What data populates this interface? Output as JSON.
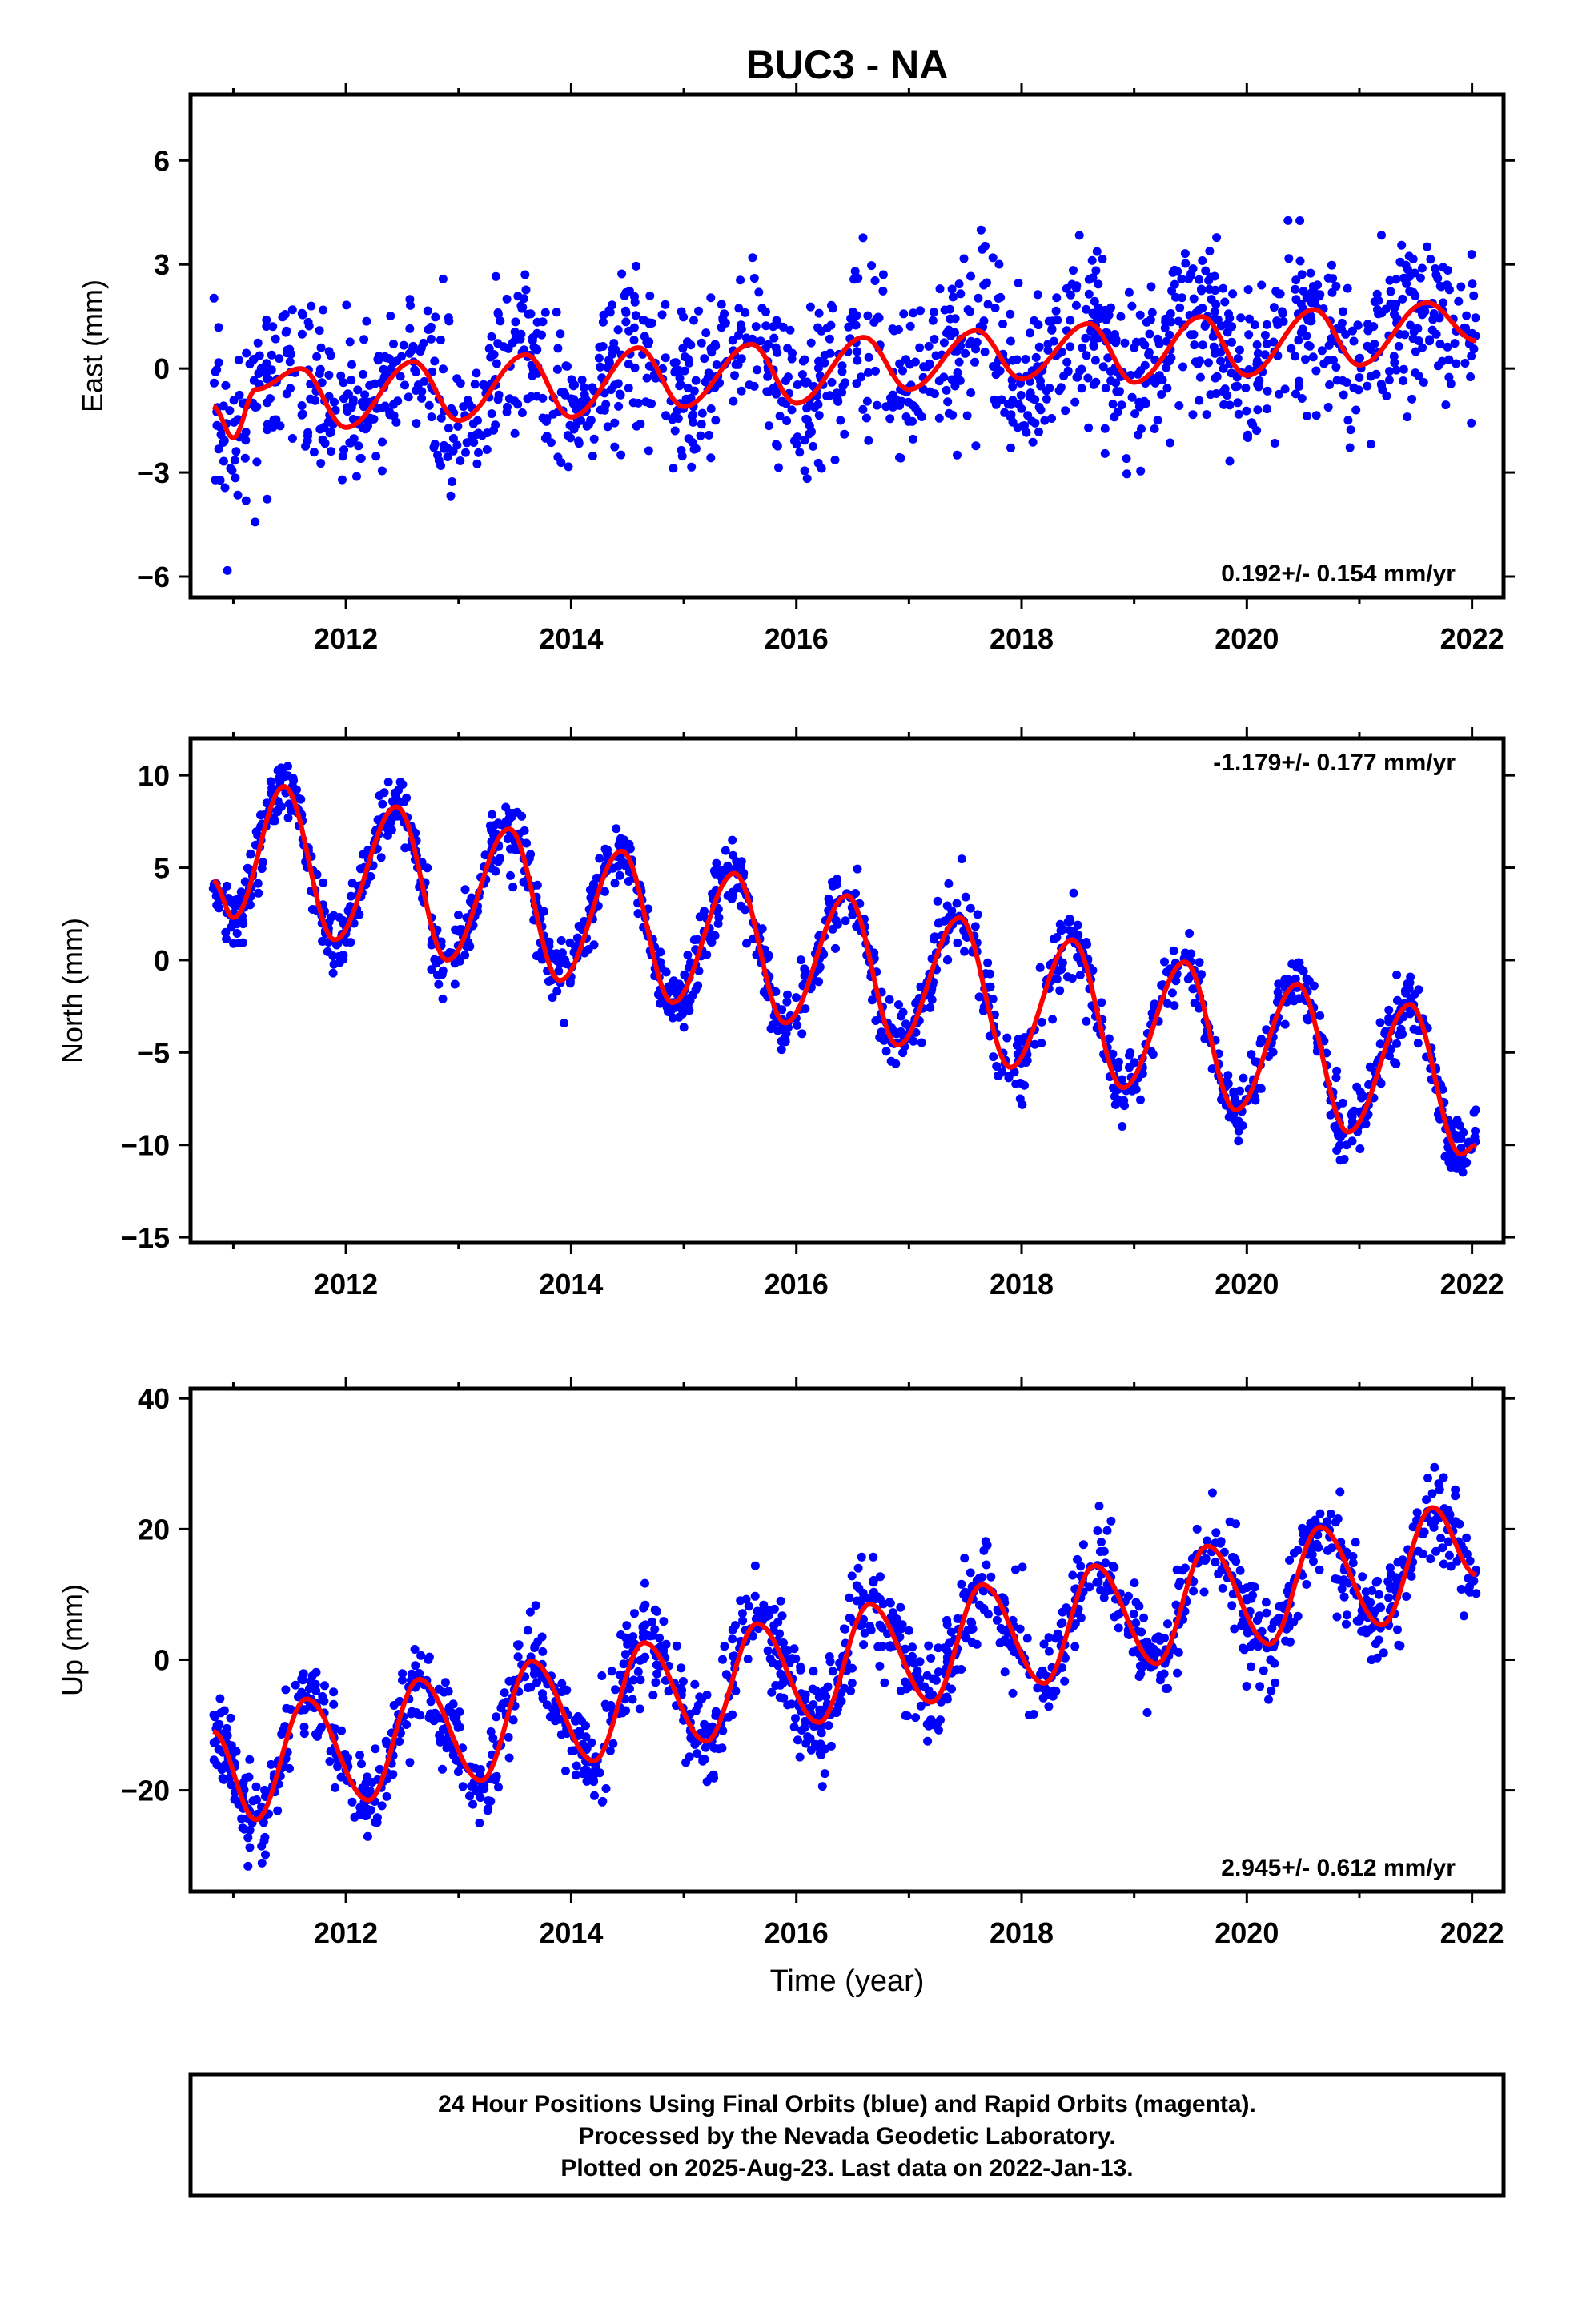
{
  "title": "BUC3 - NA",
  "colors": {
    "points": "#0000ff",
    "fit": "#ff0000",
    "frame": "#000000"
  },
  "xaxis": {
    "label": "Time (year)",
    "range": [
      2010.62,
      2022.28
    ],
    "ticks": [
      2012,
      2014,
      2016,
      2018,
      2020,
      2022
    ]
  },
  "caption": [
    "24 Hour Positions Using Final Orbits (blue) and Rapid Orbits (magenta).",
    "Processed by the Nevada Geodetic Laboratory.",
    "Plotted on 2025-Aug-23. Last data on 2022-Jan-13."
  ],
  "chart_data": [
    {
      "type": "scatter",
      "ylabel": "East (mm)",
      "ylim": [
        -6.6,
        7.9
      ],
      "yticks": [
        -6,
        -3,
        0,
        3,
        6
      ],
      "rate_label": "0.192+/- 0.154 mm/yr",
      "rate_position": "bottom-right",
      "time_range": [
        2010.82,
        2022.04
      ],
      "scatter_sd": 1.15,
      "series": [
        {
          "values_description": "daily positions",
          "fit": {
            "x": [
              2010.82,
              2011.0,
              2011.2,
              2011.6,
              2012.0,
              2012.6,
              2013.0,
              2013.6,
              2014.0,
              2014.6,
              2015.0,
              2015.6,
              2016.0,
              2016.6,
              2017.0,
              2017.6,
              2018.0,
              2018.6,
              2019.0,
              2019.6,
              2020.0,
              2020.6,
              2021.0,
              2021.6,
              2022.04
            ],
            "y": [
              -1.1,
              -2.0,
              -0.6,
              0.0,
              -1.7,
              0.2,
              -1.5,
              0.4,
              -1.4,
              0.6,
              -1.1,
              0.7,
              -1.0,
              0.9,
              -0.6,
              1.1,
              -0.3,
              1.3,
              -0.4,
              1.5,
              -0.2,
              1.7,
              0.1,
              1.9,
              0.8
            ]
          }
        }
      ]
    },
    {
      "type": "scatter",
      "ylabel": "North (mm)",
      "ylim": [
        -15.3,
        12.0
      ],
      "yticks": [
        -15,
        -10,
        -5,
        0,
        5,
        10
      ],
      "rate_label": "-1.179+/- 0.177 mm/yr",
      "rate_position": "top-right",
      "time_range": [
        2010.82,
        2022.04
      ],
      "scatter_sd": 0.9,
      "series": [
        {
          "values_description": "daily positions",
          "fit": {
            "x": [
              2010.82,
              2011.0,
              2011.45,
              2011.9,
              2012.45,
              2012.9,
              2013.45,
              2013.9,
              2014.45,
              2014.9,
              2015.45,
              2015.9,
              2016.45,
              2016.9,
              2017.45,
              2017.9,
              2018.45,
              2018.9,
              2019.45,
              2019.9,
              2020.45,
              2020.9,
              2021.45,
              2021.9,
              2022.04
            ],
            "y": [
              4.3,
              2.3,
              9.4,
              1.1,
              8.3,
              0.0,
              7.1,
              -1.1,
              5.9,
              -2.3,
              4.7,
              -3.4,
              3.5,
              -4.6,
              2.3,
              -5.8,
              1.1,
              -6.9,
              -0.1,
              -8.1,
              -1.3,
              -9.3,
              -2.4,
              -10.5,
              -10.0
            ]
          }
        }
      ]
    },
    {
      "type": "scatter",
      "ylabel": "Up (mm)",
      "ylim": [
        -35.5,
        41.5
      ],
      "yticks": [
        -20,
        0,
        20,
        40
      ],
      "rate_label": "2.945+/- 0.612 mm/yr",
      "rate_position": "bottom-right",
      "time_range": [
        2010.82,
        2022.04
      ],
      "scatter_sd": 3.6,
      "series": [
        {
          "values_description": "daily positions",
          "fit": {
            "x": [
              2010.82,
              2011.2,
              2011.65,
              2012.2,
              2012.65,
              2013.2,
              2013.65,
              2014.2,
              2014.65,
              2015.2,
              2015.65,
              2016.2,
              2016.65,
              2017.2,
              2017.65,
              2018.2,
              2018.65,
              2019.2,
              2019.65,
              2020.2,
              2020.65,
              2021.2,
              2021.65,
              2022.04
            ],
            "y": [
              -11.0,
              -24.5,
              -6.0,
              -21.5,
              -3.0,
              -18.5,
              -0.2,
              -15.5,
              2.6,
              -12.5,
              5.5,
              -9.6,
              8.5,
              -6.5,
              11.5,
              -3.6,
              14.4,
              -0.6,
              17.4,
              2.4,
              20.3,
              5.3,
              23.3,
              13.0
            ]
          }
        }
      ]
    }
  ]
}
